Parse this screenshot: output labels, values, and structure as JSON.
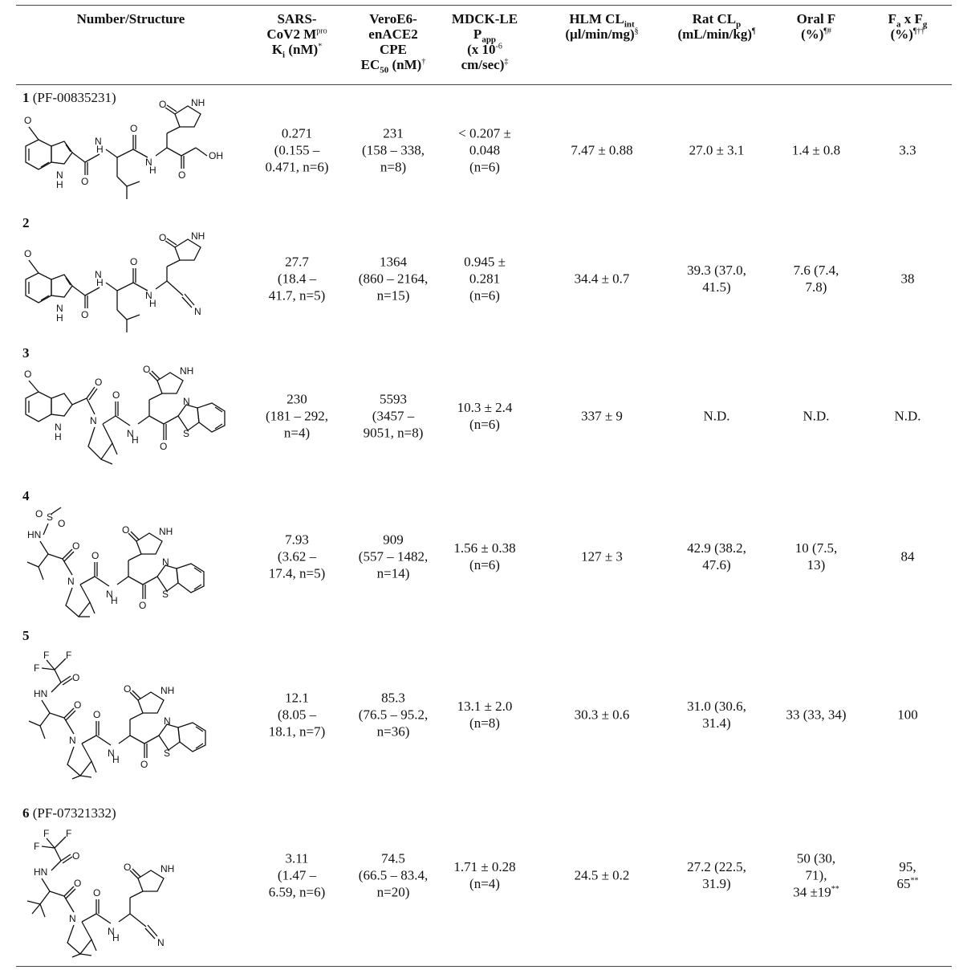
{
  "table": {
    "headers": [
      {
        "key": "structure",
        "lines": [
          "Number/Structure"
        ]
      },
      {
        "key": "ki",
        "lines": [
          "SARS-",
          "CoV2 M<sup>pro</sup>",
          "K<sub>i</sub> (nM)<sup>*</sup>"
        ]
      },
      {
        "key": "ec50",
        "lines": [
          "VeroE6-",
          "enACE2",
          "CPE",
          "EC<sub>50</sub> (nM)<sup>†</sup>"
        ]
      },
      {
        "key": "papp",
        "lines": [
          "MDCK-LE",
          "P<sub>app</sub>",
          "(x 10<sup>-6</sup>",
          "cm/sec)<sup>‡</sup>"
        ]
      },
      {
        "key": "hlm",
        "lines": [
          "HLM CL<sub>int</sub>",
          "(µl/min/mg)<sup>§</sup>"
        ]
      },
      {
        "key": "ratcl",
        "lines": [
          "Rat CL<sub>p</sub>",
          "(mL/min/kg)<sup>¶</sup>"
        ]
      },
      {
        "key": "oralf",
        "lines": [
          "Oral F",
          "(%)<sup>¶#</sup>"
        ]
      },
      {
        "key": "fafg",
        "lines": [
          "F<sub>a</sub> x F<sub>g</sub>",
          "(%)<sup>¶††</sup>"
        ]
      }
    ],
    "rows": [
      {
        "number": "1",
        "suffix": " (PF-00835231)",
        "ki": [
          "0.271",
          "(0.155 –",
          "0.471, n=6)"
        ],
        "ec50": [
          "231",
          "(158 – 338,",
          "n=8)"
        ],
        "papp": [
          "< 0.207 ±",
          "0.048",
          "(n=6)"
        ],
        "hlm": [
          "7.47 ± 0.88"
        ],
        "ratcl": [
          "27.0 ± 3.1"
        ],
        "oralf": [
          "1.4 ± 0.8"
        ],
        "fafg": [
          "3.3"
        ]
      },
      {
        "number": "2",
        "suffix": "",
        "ki": [
          "27.7",
          "(18.4 –",
          "41.7, n=5)"
        ],
        "ec50": [
          "1364",
          "(860 – 2164,",
          "n=15)"
        ],
        "papp": [
          "0.945 ±",
          "0.281",
          "(n=6)"
        ],
        "hlm": [
          "34.4 ± 0.7"
        ],
        "ratcl": [
          "39.3 (37.0,",
          "41.5)"
        ],
        "oralf": [
          "7.6 (7.4,",
          "7.8)"
        ],
        "fafg": [
          "38"
        ]
      },
      {
        "number": "3",
        "suffix": "",
        "ki": [
          "230",
          "(181 – 292,",
          "n=4)"
        ],
        "ec50": [
          "5593",
          "(3457 –",
          "9051, n=8)"
        ],
        "papp": [
          "10.3 ± 2.4",
          "(n=6)"
        ],
        "hlm": [
          "337 ± 9"
        ],
        "ratcl": [
          "N.D."
        ],
        "oralf": [
          "N.D."
        ],
        "fafg": [
          "N.D."
        ]
      },
      {
        "number": "4",
        "suffix": "",
        "ki": [
          "7.93",
          "(3.62 –",
          "17.4, n=5)"
        ],
        "ec50": [
          "909",
          "(557 – 1482,",
          "n=14)"
        ],
        "papp": [
          "1.56 ± 0.38",
          "(n=6)"
        ],
        "hlm": [
          "127 ± 3"
        ],
        "ratcl": [
          "42.9 (38.2,",
          "47.6)"
        ],
        "oralf": [
          "10 (7.5,",
          "13)"
        ],
        "fafg": [
          "84"
        ]
      },
      {
        "number": "5",
        "suffix": "",
        "ki": [
          "12.1",
          "(8.05 –",
          "18.1, n=7)"
        ],
        "ec50": [
          "85.3",
          "(76.5 – 95.2,",
          "n=36)"
        ],
        "papp": [
          "13.1 ± 2.0",
          "(n=8)"
        ],
        "hlm": [
          "30.3 ± 0.6"
        ],
        "ratcl": [
          "31.0 (30.6,",
          "31.4)"
        ],
        "oralf": [
          "33 (33, 34)"
        ],
        "fafg": [
          "100"
        ]
      },
      {
        "number": "6",
        "suffix": " (PF-07321332)",
        "ki": [
          "3.11",
          "(1.47 –",
          "6.59, n=6)"
        ],
        "ec50": [
          "74.5",
          "(66.5 – 83.4,",
          "n=20)"
        ],
        "papp": [
          "1.71 ± 0.28",
          "(n=4)"
        ],
        "hlm": [
          "24.5 ± 0.2"
        ],
        "ratcl": [
          "27.2 (22.5,",
          "31.9)"
        ],
        "oralf": [
          "50 (30,",
          "71),",
          "34 ±19<sup>**</sup>"
        ],
        "fafg": [
          "95,",
          "65<sup>**</sup>"
        ]
      }
    ]
  },
  "atom_labels": {
    "O": "O",
    "NH": "NH",
    "HN": "HN",
    "H": "H",
    "N": "N",
    "OH": "OH",
    "S": "S",
    "F": "F"
  }
}
